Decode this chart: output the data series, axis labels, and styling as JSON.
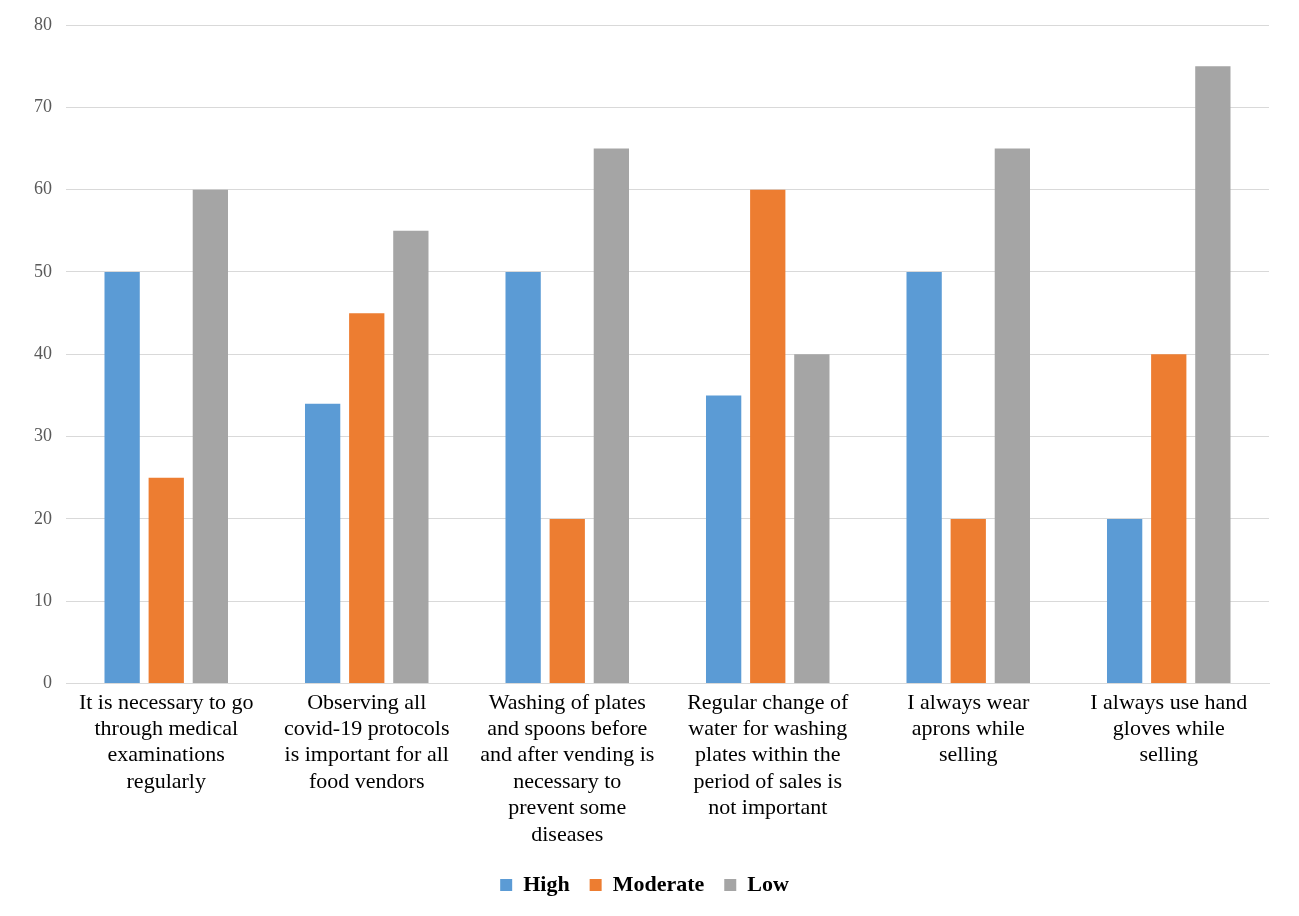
{
  "chart_data": {
    "type": "bar",
    "categories": [
      "It is necessary to go through medical examinations regularly",
      "Observing all covid-19 protocols is important for all food vendors",
      "Washing of plates and spoons before and after vending is necessary to prevent some diseases",
      "Regular change of water for washing plates within the period of sales is not important",
      "I always wear aprons while selling",
      "I always use hand gloves while selling"
    ],
    "series": [
      {
        "name": "High",
        "color": "#5b9bd5",
        "values": [
          50,
          34,
          50,
          35,
          50,
          20
        ]
      },
      {
        "name": "Moderate",
        "color": "#ed7d31",
        "values": [
          25,
          45,
          20,
          60,
          20,
          40
        ]
      },
      {
        "name": "Low",
        "color": "#a5a5a5",
        "values": [
          60,
          55,
          65,
          40,
          65,
          75
        ]
      }
    ],
    "ylim": [
      0,
      80
    ],
    "yticks": [
      0,
      10,
      20,
      30,
      40,
      50,
      60,
      70,
      80
    ],
    "grid": "y",
    "legend": "bottom"
  }
}
